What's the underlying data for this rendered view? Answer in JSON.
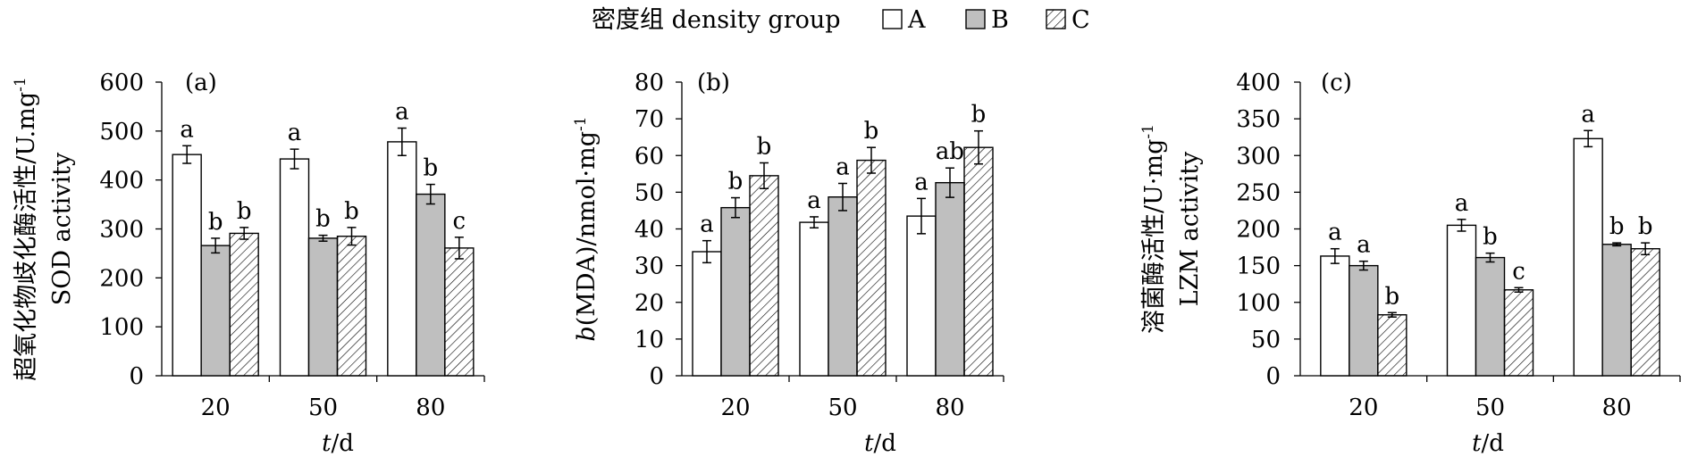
{
  "legend": {
    "title": "密度组 density group",
    "items": [
      {
        "name": "A",
        "fill": "#ffffff",
        "pattern": "none"
      },
      {
        "name": "B",
        "fill": "#bfbfbf",
        "pattern": "none"
      },
      {
        "name": "C",
        "fill": "#ffffff",
        "pattern": "hatch"
      }
    ]
  },
  "chart_data": [
    {
      "type": "bar",
      "panel_label": "(a)",
      "categories": [
        "20",
        "50",
        "80"
      ],
      "ylim": [
        0,
        600
      ],
      "yticks": [
        0,
        100,
        200,
        300,
        400,
        500,
        600
      ],
      "ylabel_line1": "超氧化物歧化酶活性/U.mg",
      "ylabel_sup": "-1",
      "ylabel_line2": "SOD activity",
      "xlabel_italic": "t",
      "xlabel_rest": "/d",
      "series": [
        {
          "name": "A",
          "values": [
            452,
            443,
            478
          ],
          "errors": [
            18,
            20,
            28
          ],
          "letters": [
            "a",
            "a",
            "a"
          ]
        },
        {
          "name": "B",
          "values": [
            266,
            281,
            371
          ],
          "errors": [
            15,
            6,
            20
          ],
          "letters": [
            "b",
            "b",
            "b"
          ]
        },
        {
          "name": "C",
          "values": [
            291,
            285,
            261
          ],
          "errors": [
            12,
            18,
            22
          ],
          "letters": [
            "b",
            "b",
            "c"
          ]
        }
      ]
    },
    {
      "type": "bar",
      "panel_label": "(b)",
      "categories": [
        "20",
        "50",
        "80"
      ],
      "ylim": [
        0,
        80
      ],
      "yticks": [
        0,
        10,
        20,
        30,
        40,
        50,
        60,
        70,
        80
      ],
      "ylabel_italic": "b",
      "ylabel_rest": "(MDA)/nmol·mg",
      "ylabel_sup": "-1",
      "xlabel_italic": "t",
      "xlabel_rest": "/d",
      "series": [
        {
          "name": "A",
          "values": [
            33.8,
            41.8,
            43.5
          ],
          "errors": [
            3.0,
            1.5,
            4.8
          ],
          "letters": [
            "a",
            "a",
            "a"
          ]
        },
        {
          "name": "B",
          "values": [
            45.8,
            48.7,
            52.6
          ],
          "errors": [
            2.7,
            3.7,
            4.0
          ],
          "letters": [
            "b",
            "a",
            "ab"
          ]
        },
        {
          "name": "C",
          "values": [
            54.5,
            58.7,
            62.2
          ],
          "errors": [
            3.5,
            3.5,
            4.5
          ],
          "letters": [
            "b",
            "b",
            "b"
          ]
        }
      ]
    },
    {
      "type": "bar",
      "panel_label": "(c)",
      "categories": [
        "20",
        "50",
        "80"
      ],
      "ylim": [
        0,
        400
      ],
      "yticks": [
        0,
        50,
        100,
        150,
        200,
        250,
        300,
        350,
        400
      ],
      "ylabel_line1": "溶菌酶活性/U·mg",
      "ylabel_sup": "-1",
      "ylabel_line2": "LZM activity",
      "xlabel_italic": "t",
      "xlabel_rest": "/d",
      "series": [
        {
          "name": "A",
          "values": [
            163,
            205,
            323
          ],
          "errors": [
            10,
            8,
            11
          ],
          "letters": [
            "a",
            "a",
            "a"
          ]
        },
        {
          "name": "B",
          "values": [
            150,
            161,
            179
          ],
          "errors": [
            6,
            6,
            2
          ],
          "letters": [
            "a",
            "b",
            "b"
          ]
        },
        {
          "name": "C",
          "values": [
            83,
            117,
            173
          ],
          "errors": [
            3,
            3,
            8
          ],
          "letters": [
            "b",
            "c",
            "b"
          ]
        }
      ]
    }
  ]
}
